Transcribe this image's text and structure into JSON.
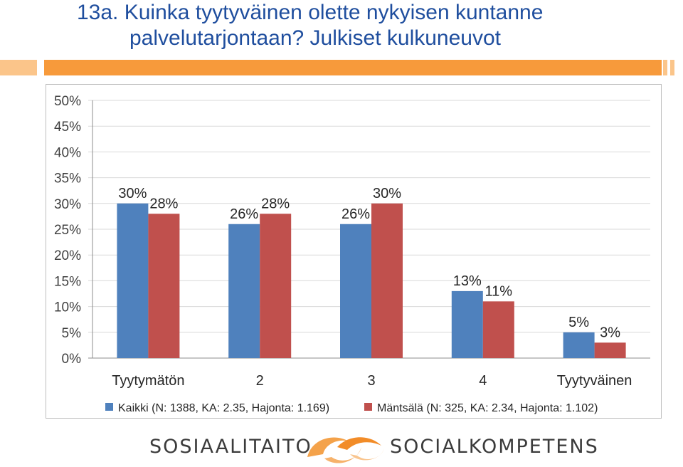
{
  "title": {
    "line1": "13a. Kuinka tyytyväinen olette nykyisen kuntanne",
    "line2": "palvelutarjontaan? Julkiset kulkuneuvot"
  },
  "colors": {
    "title": "#1f4e9e",
    "accent_bar": "#f79a3b",
    "series_kaikki": "#4f81bd",
    "series_mantsala": "#c0504d"
  },
  "chart_data": {
    "type": "bar",
    "categories": [
      "Tyytymätön",
      "2",
      "3",
      "4",
      "Tyytyväinen"
    ],
    "series": [
      {
        "name": "Kaikki (N: 1388, KA: 2.35, Hajonta: 1.169)",
        "values": [
          30,
          26,
          26,
          13,
          5
        ],
        "labels": [
          "30%",
          "26%",
          "26%",
          "13%",
          "5%"
        ]
      },
      {
        "name": "Mäntsälä (N: 325, KA: 2.34, Hajonta: 1.102)",
        "values": [
          28,
          28,
          30,
          11,
          3
        ],
        "labels": [
          "28%",
          "28%",
          "30%",
          "11%",
          "3%"
        ]
      }
    ],
    "yticks": [
      "0%",
      "5%",
      "10%",
      "15%",
      "20%",
      "25%",
      "30%",
      "35%",
      "40%",
      "45%",
      "50%"
    ],
    "ylim": [
      0,
      50
    ],
    "grid": true,
    "legend_position": "bottom"
  },
  "footer": {
    "left_text": "SOSIAALITAITO",
    "right_text": "SOCIALKOMPETENS"
  }
}
